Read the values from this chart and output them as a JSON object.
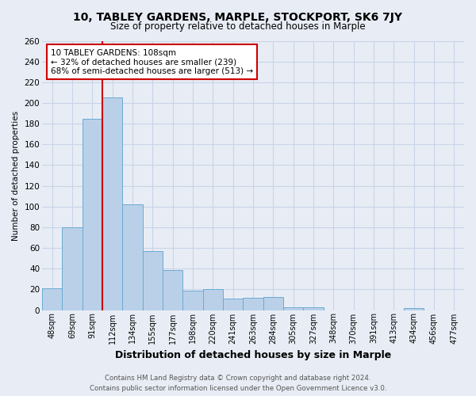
{
  "title": "10, TABLEY GARDENS, MARPLE, STOCKPORT, SK6 7JY",
  "subtitle": "Size of property relative to detached houses in Marple",
  "xlabel": "Distribution of detached houses by size in Marple",
  "ylabel": "Number of detached properties",
  "categories": [
    "48sqm",
    "69sqm",
    "91sqm",
    "112sqm",
    "134sqm",
    "155sqm",
    "177sqm",
    "198sqm",
    "220sqm",
    "241sqm",
    "263sqm",
    "284sqm",
    "305sqm",
    "327sqm",
    "348sqm",
    "370sqm",
    "391sqm",
    "413sqm",
    "434sqm",
    "456sqm",
    "477sqm"
  ],
  "values": [
    21,
    80,
    185,
    205,
    102,
    57,
    39,
    19,
    20,
    11,
    12,
    13,
    3,
    3,
    0,
    0,
    0,
    0,
    2,
    0,
    0
  ],
  "bar_color": "#bad0e8",
  "bar_edge_color": "#6aaad4",
  "bg_color": "#e8edf5",
  "grid_color": "#c8d4e8",
  "property_line_color": "#cc0000",
  "property_line_index": 2.5,
  "annotation_text": "10 TABLEY GARDENS: 108sqm\n← 32% of detached houses are smaller (239)\n68% of semi-detached houses are larger (513) →",
  "annotation_box_color": "#cc0000",
  "footer_line1": "Contains HM Land Registry data © Crown copyright and database right 2024.",
  "footer_line2": "Contains public sector information licensed under the Open Government Licence v3.0.",
  "ylim": [
    0,
    260
  ],
  "yticks": [
    0,
    20,
    40,
    60,
    80,
    100,
    120,
    140,
    160,
    180,
    200,
    220,
    240,
    260
  ]
}
